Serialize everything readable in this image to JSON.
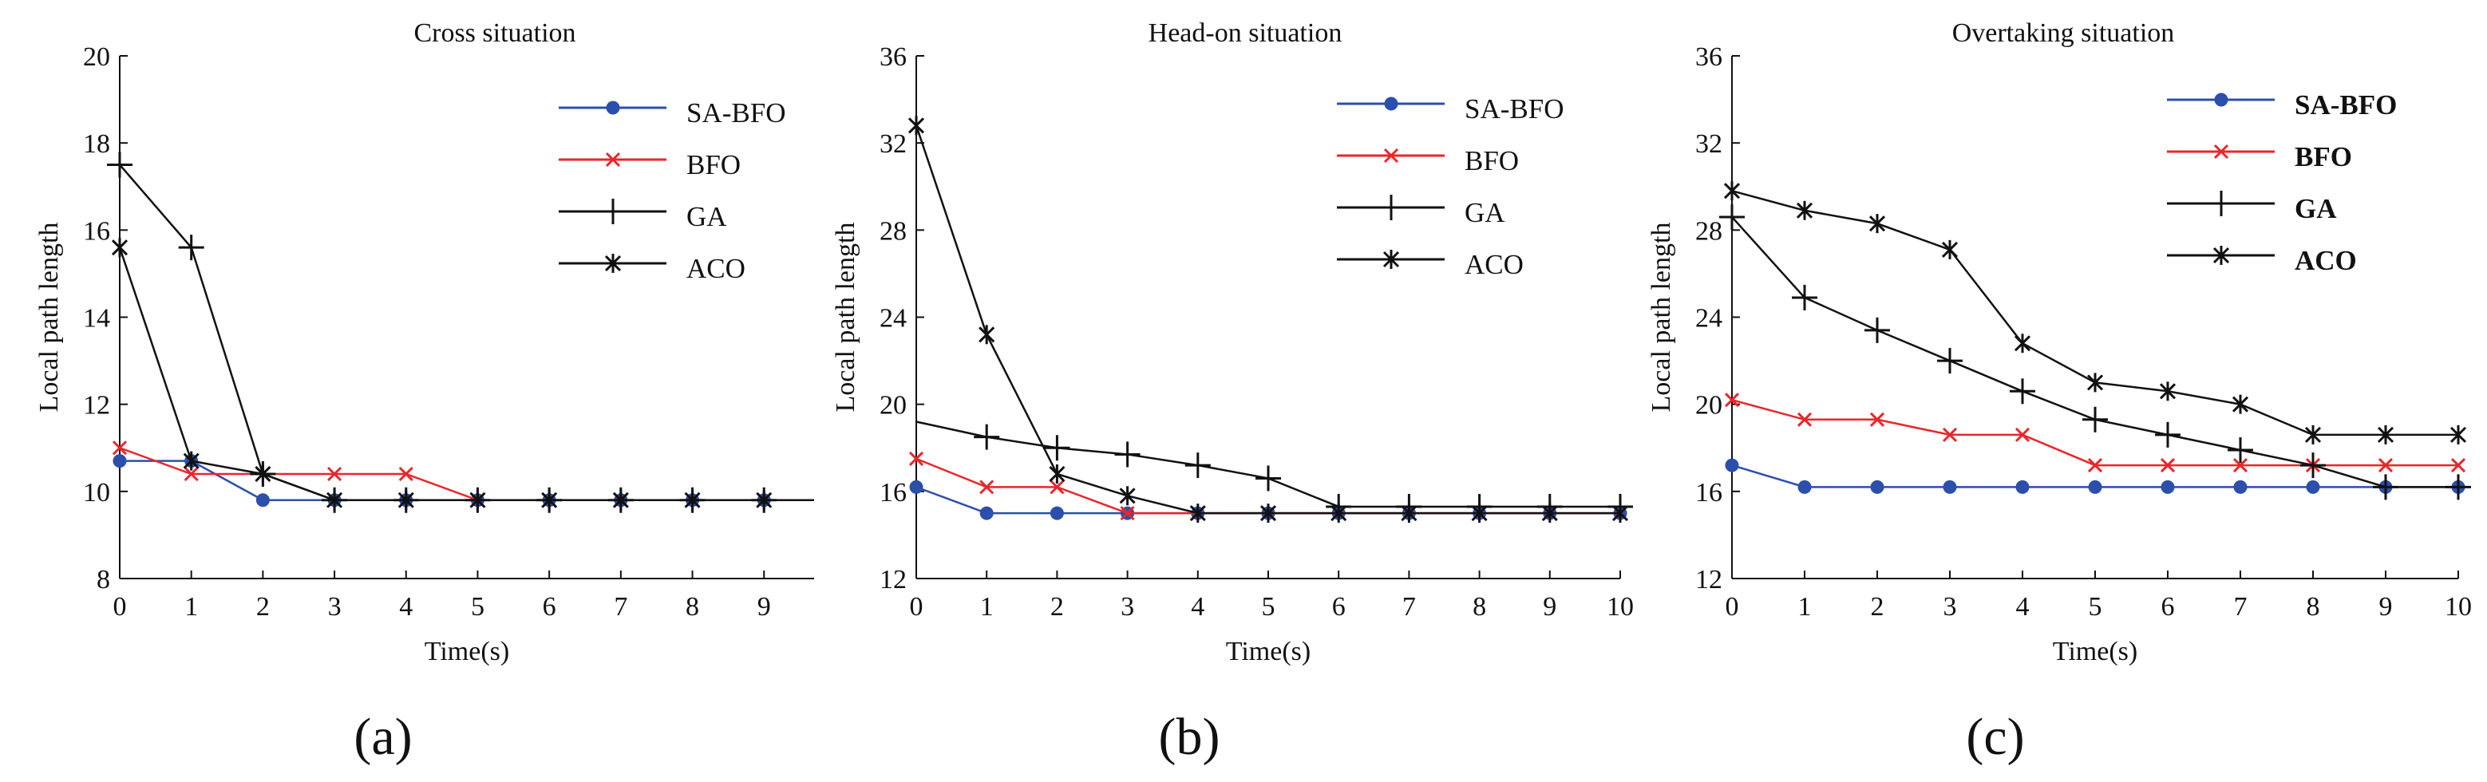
{
  "chart_data": [
    {
      "type": "line",
      "panel_label": "(a)",
      "title": "Cross situation",
      "xlabel": "Time(s)",
      "ylabel": "Local path length",
      "xlim": [
        0,
        9.7
      ],
      "ylim": [
        8,
        20
      ],
      "xticks": [
        0,
        1,
        2,
        3,
        4,
        5,
        6,
        7,
        8,
        9
      ],
      "yticks": [
        8,
        10,
        12,
        14,
        16,
        18,
        20
      ],
      "legend_position": "top-right",
      "series": [
        {
          "name": "SA-BFO",
          "color": "#2b4faa",
          "marker": "dot",
          "x": [
            0,
            1,
            2,
            3,
            4,
            5,
            6,
            7,
            8,
            9,
            9.7
          ],
          "y": [
            10.7,
            10.7,
            9.8,
            9.8,
            9.8,
            9.8,
            9.8,
            9.8,
            9.8,
            9.8,
            9.8
          ],
          "markers_at": [
            0,
            1,
            2,
            3,
            4,
            5,
            6,
            7,
            8,
            9
          ]
        },
        {
          "name": "BFO",
          "color": "#e8262b",
          "marker": "x",
          "x": [
            0,
            1,
            2,
            3,
            4,
            5,
            6,
            7,
            8,
            9,
            9.7
          ],
          "y": [
            11.0,
            10.4,
            10.4,
            10.4,
            10.4,
            9.8,
            9.8,
            9.8,
            9.8,
            9.8,
            9.8
          ],
          "markers_at": [
            0,
            1,
            2,
            3,
            4,
            5,
            6,
            7,
            8,
            9
          ]
        },
        {
          "name": "GA",
          "color": "#111111",
          "marker": "plus",
          "x": [
            0,
            1,
            2,
            3,
            4,
            5,
            6,
            7,
            8,
            9,
            9.7
          ],
          "y": [
            17.5,
            15.6,
            10.4,
            9.8,
            9.8,
            9.8,
            9.8,
            9.8,
            9.8,
            9.8,
            9.8
          ],
          "markers_at": [
            0,
            1,
            2,
            3,
            4,
            5,
            6,
            7,
            8,
            9
          ]
        },
        {
          "name": "ACO",
          "color": "#111111",
          "marker": "star",
          "x": [
            0,
            1,
            2,
            3,
            4,
            5,
            6,
            7,
            8,
            9,
            9.7
          ],
          "y": [
            15.6,
            10.7,
            10.4,
            9.8,
            9.8,
            9.8,
            9.8,
            9.8,
            9.8,
            9.8,
            9.8
          ],
          "markers_at": [
            0,
            1,
            2,
            3,
            4,
            5,
            6,
            7,
            8,
            9
          ]
        }
      ]
    },
    {
      "type": "line",
      "panel_label": "(b)",
      "title": "Head-on situation",
      "xlabel": "Time(s)",
      "ylabel": "Local path length",
      "xlim": [
        0,
        10
      ],
      "ylim": [
        12,
        36
      ],
      "xticks": [
        0,
        1,
        2,
        3,
        4,
        5,
        6,
        7,
        8,
        9,
        10
      ],
      "yticks": [
        12,
        16,
        20,
        24,
        28,
        32,
        36
      ],
      "legend_position": "top-right",
      "series": [
        {
          "name": "SA-BFO",
          "color": "#2b4faa",
          "marker": "dot",
          "x": [
            0,
            1,
            2,
            3,
            4,
            5,
            6,
            7,
            8,
            9,
            10
          ],
          "y": [
            16.2,
            15.0,
            15.0,
            15.0,
            15.0,
            15.0,
            15.0,
            15.0,
            15.0,
            15.0,
            15.0
          ],
          "markers_at": [
            0,
            1,
            2,
            3,
            4,
            5,
            6,
            7,
            8,
            9,
            10
          ]
        },
        {
          "name": "BFO",
          "color": "#e8262b",
          "marker": "x",
          "x": [
            0,
            1,
            2,
            3,
            4,
            5,
            6,
            7,
            8,
            9,
            10
          ],
          "y": [
            17.5,
            16.2,
            16.2,
            15.0,
            15.0,
            15.0,
            15.0,
            15.0,
            15.0,
            15.0,
            15.0
          ],
          "markers_at": [
            0,
            1,
            2,
            3,
            4,
            5,
            6,
            7,
            8,
            9,
            10
          ]
        },
        {
          "name": "GA",
          "color": "#111111",
          "marker": "plus",
          "x": [
            0,
            1,
            2,
            3,
            4,
            5,
            6,
            7,
            8,
            9,
            10
          ],
          "y": [
            19.2,
            18.5,
            18.0,
            17.7,
            17.2,
            16.6,
            15.3,
            15.3,
            15.3,
            15.3,
            15.3
          ],
          "markers_at": [
            1,
            2,
            3,
            4,
            5,
            6,
            7,
            8,
            9,
            10
          ]
        },
        {
          "name": "ACO",
          "color": "#111111",
          "marker": "star",
          "x": [
            0,
            1,
            2,
            3,
            4,
            5,
            6,
            7,
            8,
            9,
            10
          ],
          "y": [
            32.8,
            23.2,
            16.8,
            15.8,
            15.0,
            15.0,
            15.0,
            15.0,
            15.0,
            15.0,
            15.0
          ],
          "markers_at": [
            0,
            1,
            2,
            3,
            4,
            5,
            6,
            7,
            8,
            9,
            10
          ]
        }
      ]
    },
    {
      "type": "line",
      "panel_label": "(c)",
      "title": "Overtaking situation",
      "xlabel": "Time(s)",
      "ylabel": "Local path length",
      "xlim": [
        0,
        10
      ],
      "ylim": [
        12,
        36
      ],
      "xticks": [
        0,
        1,
        2,
        3,
        4,
        5,
        6,
        7,
        8,
        9,
        10
      ],
      "yticks": [
        12,
        16,
        20,
        24,
        28,
        32,
        36
      ],
      "legend_position": "top-right",
      "series": [
        {
          "name": "SA-BFO",
          "color": "#2b4faa",
          "marker": "dot",
          "x": [
            0,
            1,
            2,
            3,
            4,
            5,
            6,
            7,
            8,
            9,
            10
          ],
          "y": [
            17.2,
            16.2,
            16.2,
            16.2,
            16.2,
            16.2,
            16.2,
            16.2,
            16.2,
            16.2,
            16.2
          ],
          "markers_at": [
            0,
            1,
            2,
            3,
            4,
            5,
            6,
            7,
            8,
            9,
            10
          ]
        },
        {
          "name": "BFO",
          "color": "#e8262b",
          "marker": "x",
          "x": [
            0,
            1,
            2,
            3,
            4,
            5,
            6,
            7,
            8,
            9,
            10
          ],
          "y": [
            20.2,
            19.3,
            19.3,
            18.6,
            18.6,
            17.2,
            17.2,
            17.2,
            17.2,
            17.2,
            17.2
          ],
          "markers_at": [
            0,
            1,
            2,
            3,
            4,
            5,
            6,
            7,
            8,
            9,
            10
          ]
        },
        {
          "name": "GA",
          "color": "#111111",
          "marker": "plus",
          "x": [
            0,
            1,
            2,
            3,
            4,
            5,
            6,
            7,
            8,
            9,
            10
          ],
          "y": [
            28.6,
            24.9,
            23.4,
            22.0,
            20.6,
            19.3,
            18.6,
            17.9,
            17.2,
            16.2,
            16.2
          ],
          "markers_at": [
            0,
            1,
            2,
            3,
            4,
            5,
            6,
            7,
            8,
            9,
            10
          ]
        },
        {
          "name": "ACO",
          "color": "#111111",
          "marker": "star",
          "x": [
            0,
            1,
            2,
            3,
            4,
            5,
            6,
            7,
            8,
            9,
            10
          ],
          "y": [
            29.8,
            28.9,
            28.3,
            27.1,
            22.8,
            21.0,
            20.6,
            20.0,
            18.6,
            18.6,
            18.6
          ],
          "markers_at": [
            0,
            1,
            2,
            3,
            4,
            5,
            6,
            7,
            8,
            9,
            10
          ]
        }
      ]
    }
  ]
}
